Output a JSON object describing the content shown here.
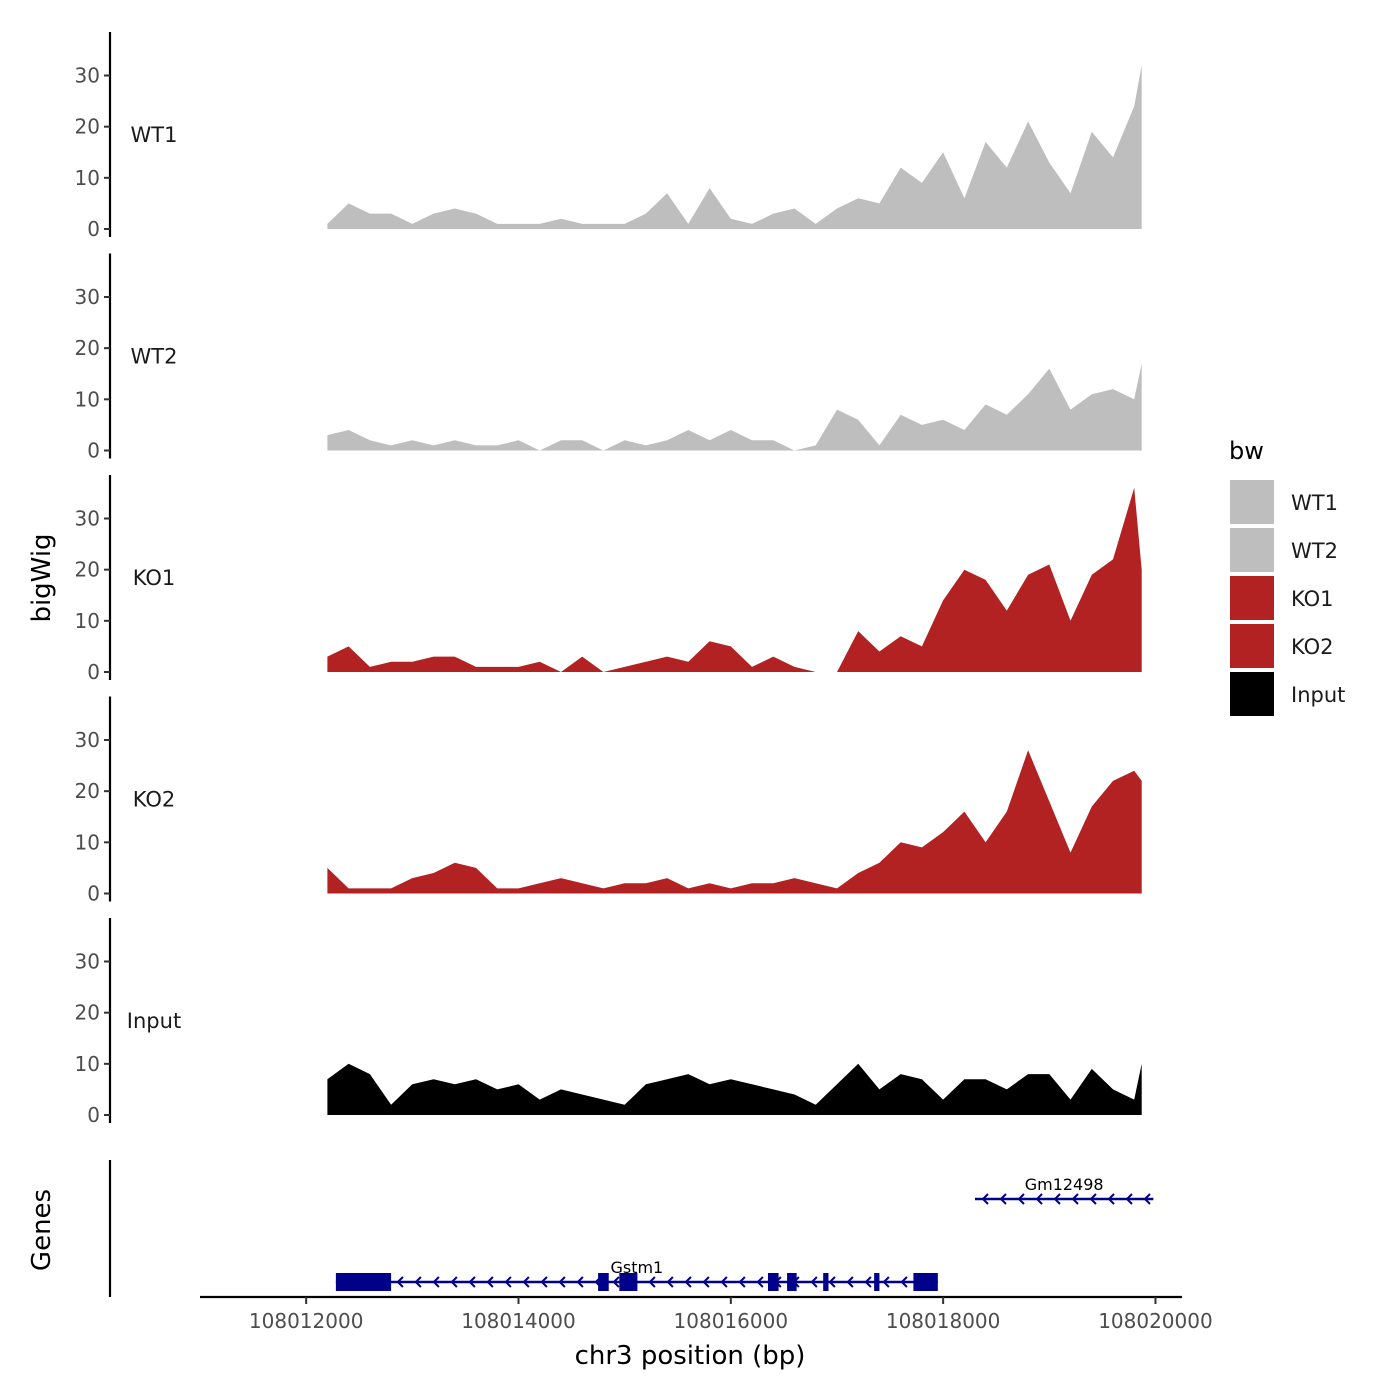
{
  "chart_data": {
    "type": "area",
    "chromosome": "chr3",
    "xlabel": "chr3 position (bp)",
    "ylabel": "bigWig",
    "genes_label": "Genes",
    "x_ticks": [
      108012000,
      108014000,
      108016000,
      108018000,
      108020000
    ],
    "xlim": [
      108011000,
      108020250
    ],
    "ylim": [
      0,
      38.5
    ],
    "y_ticks": [
      0,
      10,
      20,
      30
    ],
    "legend": {
      "title": "bw",
      "entries": [
        {
          "label": "WT1",
          "color": "#bebebe"
        },
        {
          "label": "WT2",
          "color": "#bebebe"
        },
        {
          "label": "KO1",
          "color": "#b22222"
        },
        {
          "label": "KO2",
          "color": "#b22222"
        },
        {
          "label": "Input",
          "color": "#000000"
        }
      ]
    },
    "x": [
      108012200,
      108012400,
      108012600,
      108012800,
      108013000,
      108013200,
      108013400,
      108013600,
      108013800,
      108014000,
      108014200,
      108014400,
      108014600,
      108014800,
      108015000,
      108015200,
      108015400,
      108015600,
      108015800,
      108016000,
      108016200,
      108016400,
      108016600,
      108016800,
      108017000,
      108017200,
      108017400,
      108017600,
      108017800,
      108018000,
      108018200,
      108018400,
      108018600,
      108018800,
      108019000,
      108019200,
      108019400,
      108019600,
      108019800,
      108019870
    ],
    "series": [
      {
        "name": "WT1",
        "color": "#bebebe",
        "values": [
          1,
          5,
          3,
          3,
          1,
          3,
          4,
          3,
          1,
          1,
          1,
          2,
          1,
          1,
          1,
          3,
          7,
          1,
          8,
          2,
          1,
          3,
          4,
          1,
          4,
          6,
          5,
          12,
          9,
          15,
          6,
          17,
          12,
          21,
          13,
          7,
          19,
          14,
          24,
          32
        ]
      },
      {
        "name": "WT2",
        "color": "#bebebe",
        "values": [
          3,
          4,
          2,
          1,
          2,
          1,
          2,
          1,
          1,
          2,
          0,
          2,
          2,
          0,
          2,
          1,
          2,
          4,
          2,
          4,
          2,
          2,
          0,
          1,
          8,
          6,
          1,
          7,
          5,
          6,
          4,
          9,
          7,
          11,
          16,
          8,
          11,
          12,
          10,
          17
        ]
      },
      {
        "name": "KO1",
        "color": "#b22222",
        "values": [
          3,
          5,
          1,
          2,
          2,
          3,
          3,
          1,
          1,
          1,
          2,
          0,
          3,
          0,
          1,
          2,
          3,
          2,
          6,
          5,
          1,
          3,
          1,
          0,
          0,
          8,
          4,
          7,
          5,
          14,
          20,
          18,
          12,
          19,
          21,
          10,
          19,
          22,
          36,
          20
        ]
      },
      {
        "name": "KO2",
        "color": "#b22222",
        "values": [
          5,
          1,
          1,
          1,
          3,
          4,
          6,
          5,
          1,
          1,
          2,
          3,
          2,
          1,
          2,
          2,
          3,
          1,
          2,
          1,
          2,
          2,
          3,
          2,
          1,
          4,
          6,
          10,
          9,
          12,
          16,
          10,
          16,
          28,
          18,
          8,
          17,
          22,
          24,
          22
        ]
      },
      {
        "name": "Input",
        "color": "#000000",
        "values": [
          7,
          10,
          8,
          2,
          6,
          7,
          6,
          7,
          5,
          6,
          3,
          5,
          4,
          3,
          2,
          6,
          7,
          8,
          6,
          7,
          6,
          5,
          4,
          2,
          6,
          10,
          5,
          8,
          7,
          3,
          7,
          7,
          5,
          8,
          8,
          3,
          9,
          5,
          3,
          10
        ]
      }
    ],
    "genes": [
      {
        "name": "Gm12498",
        "strand": "-",
        "start": 108018300,
        "end": 108019980,
        "exons": []
      },
      {
        "name": "Gstm1",
        "strand": "-",
        "start": 108012280,
        "end": 108017950,
        "exons": [
          [
            108012280,
            108012800
          ],
          [
            108014750,
            108014850
          ],
          [
            108014950,
            108015120
          ],
          [
            108016350,
            108016450
          ],
          [
            108016530,
            108016620
          ],
          [
            108016870,
            108016920
          ],
          [
            108017350,
            108017400
          ],
          [
            108017720,
            108017950
          ]
        ]
      }
    ]
  }
}
